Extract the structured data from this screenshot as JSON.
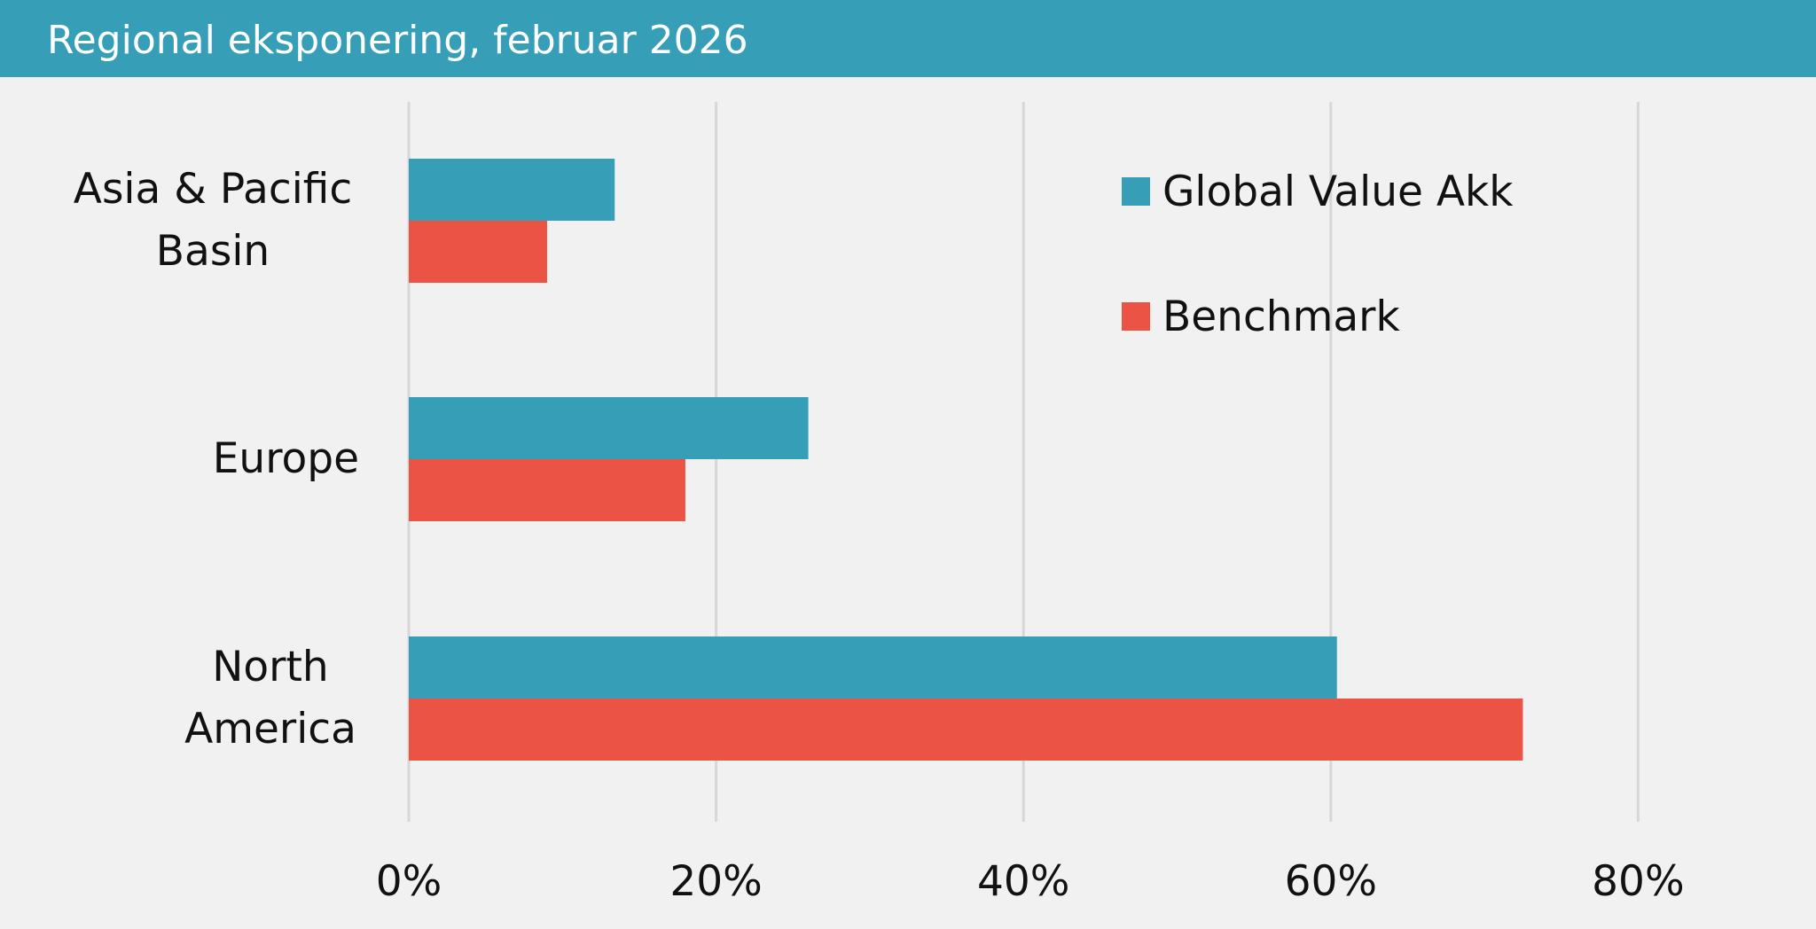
{
  "title": "Regional eksponering, februar 2026",
  "chart_data": {
    "type": "bar",
    "orientation": "horizontal",
    "categories": [
      "Asia & Pacific\nBasin",
      "Europe",
      "North\nAmerica"
    ],
    "series": [
      {
        "name": "Global Value Akk",
        "color": "#369fb7",
        "values": [
          13.4,
          26.0,
          60.4
        ]
      },
      {
        "name": "Benchmark",
        "color": "#eb5444",
        "values": [
          9.0,
          18.0,
          72.5
        ]
      }
    ],
    "x_ticks": [
      "0%",
      "20%",
      "40%",
      "60%",
      "80%"
    ],
    "xlim": [
      0,
      80
    ],
    "grid": "vertical",
    "legend_position": "top-right"
  }
}
